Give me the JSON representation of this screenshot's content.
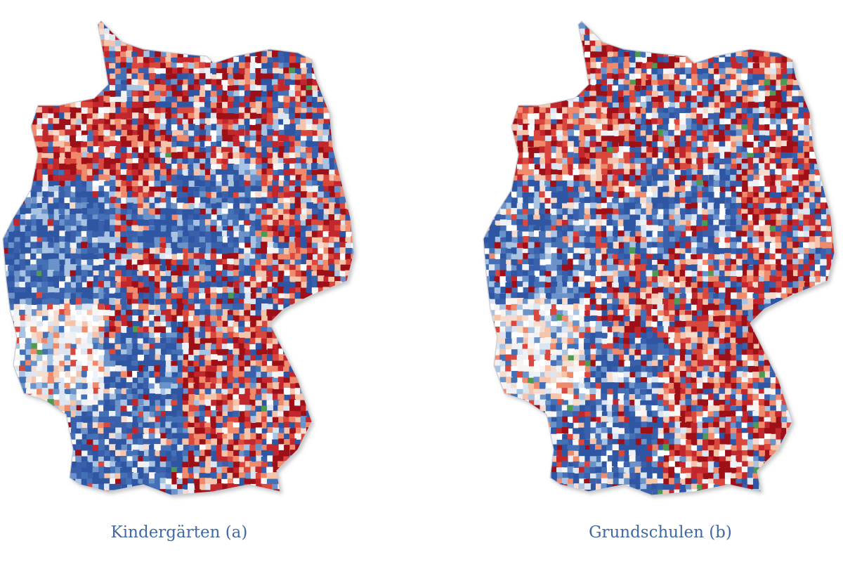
{
  "panels": [
    {
      "caption": "Kindergärten (a)"
    },
    {
      "caption": "Grundschulen (b)"
    }
  ]
}
